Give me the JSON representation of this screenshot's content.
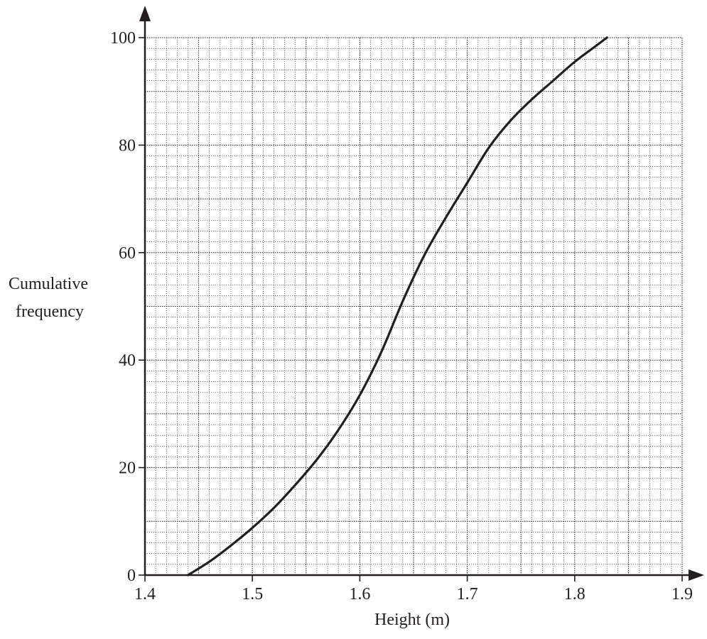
{
  "chart_data": {
    "type": "line",
    "title": "",
    "xlabel": "Height (m)",
    "ylabel_lines": [
      "Cumulative",
      "frequency"
    ],
    "xlim": [
      1.4,
      1.9
    ],
    "ylim": [
      0,
      100
    ],
    "x_ticks": [
      "1.4",
      "1.5",
      "1.6",
      "1.7",
      "1.8",
      "1.9"
    ],
    "y_ticks": [
      "0",
      "20",
      "40",
      "60",
      "80",
      "100"
    ],
    "grid": true,
    "legend": "none",
    "series": [
      {
        "x": [
          1.44,
          1.46,
          1.48,
          1.5,
          1.52,
          1.54,
          1.56,
          1.58,
          1.6,
          1.62,
          1.64,
          1.66,
          1.68,
          1.7,
          1.72,
          1.74,
          1.76,
          1.78,
          1.8,
          1.82,
          1.83
        ],
        "y": [
          0,
          2.5,
          5.5,
          8.8,
          12.5,
          16.8,
          21.5,
          27,
          33.5,
          41.5,
          51,
          59.5,
          66.5,
          73,
          79.5,
          84.5,
          88.5,
          92,
          95.5,
          98.5,
          100
        ]
      }
    ]
  },
  "colors": {
    "ink": "#231f20",
    "background": "#ffffff"
  }
}
